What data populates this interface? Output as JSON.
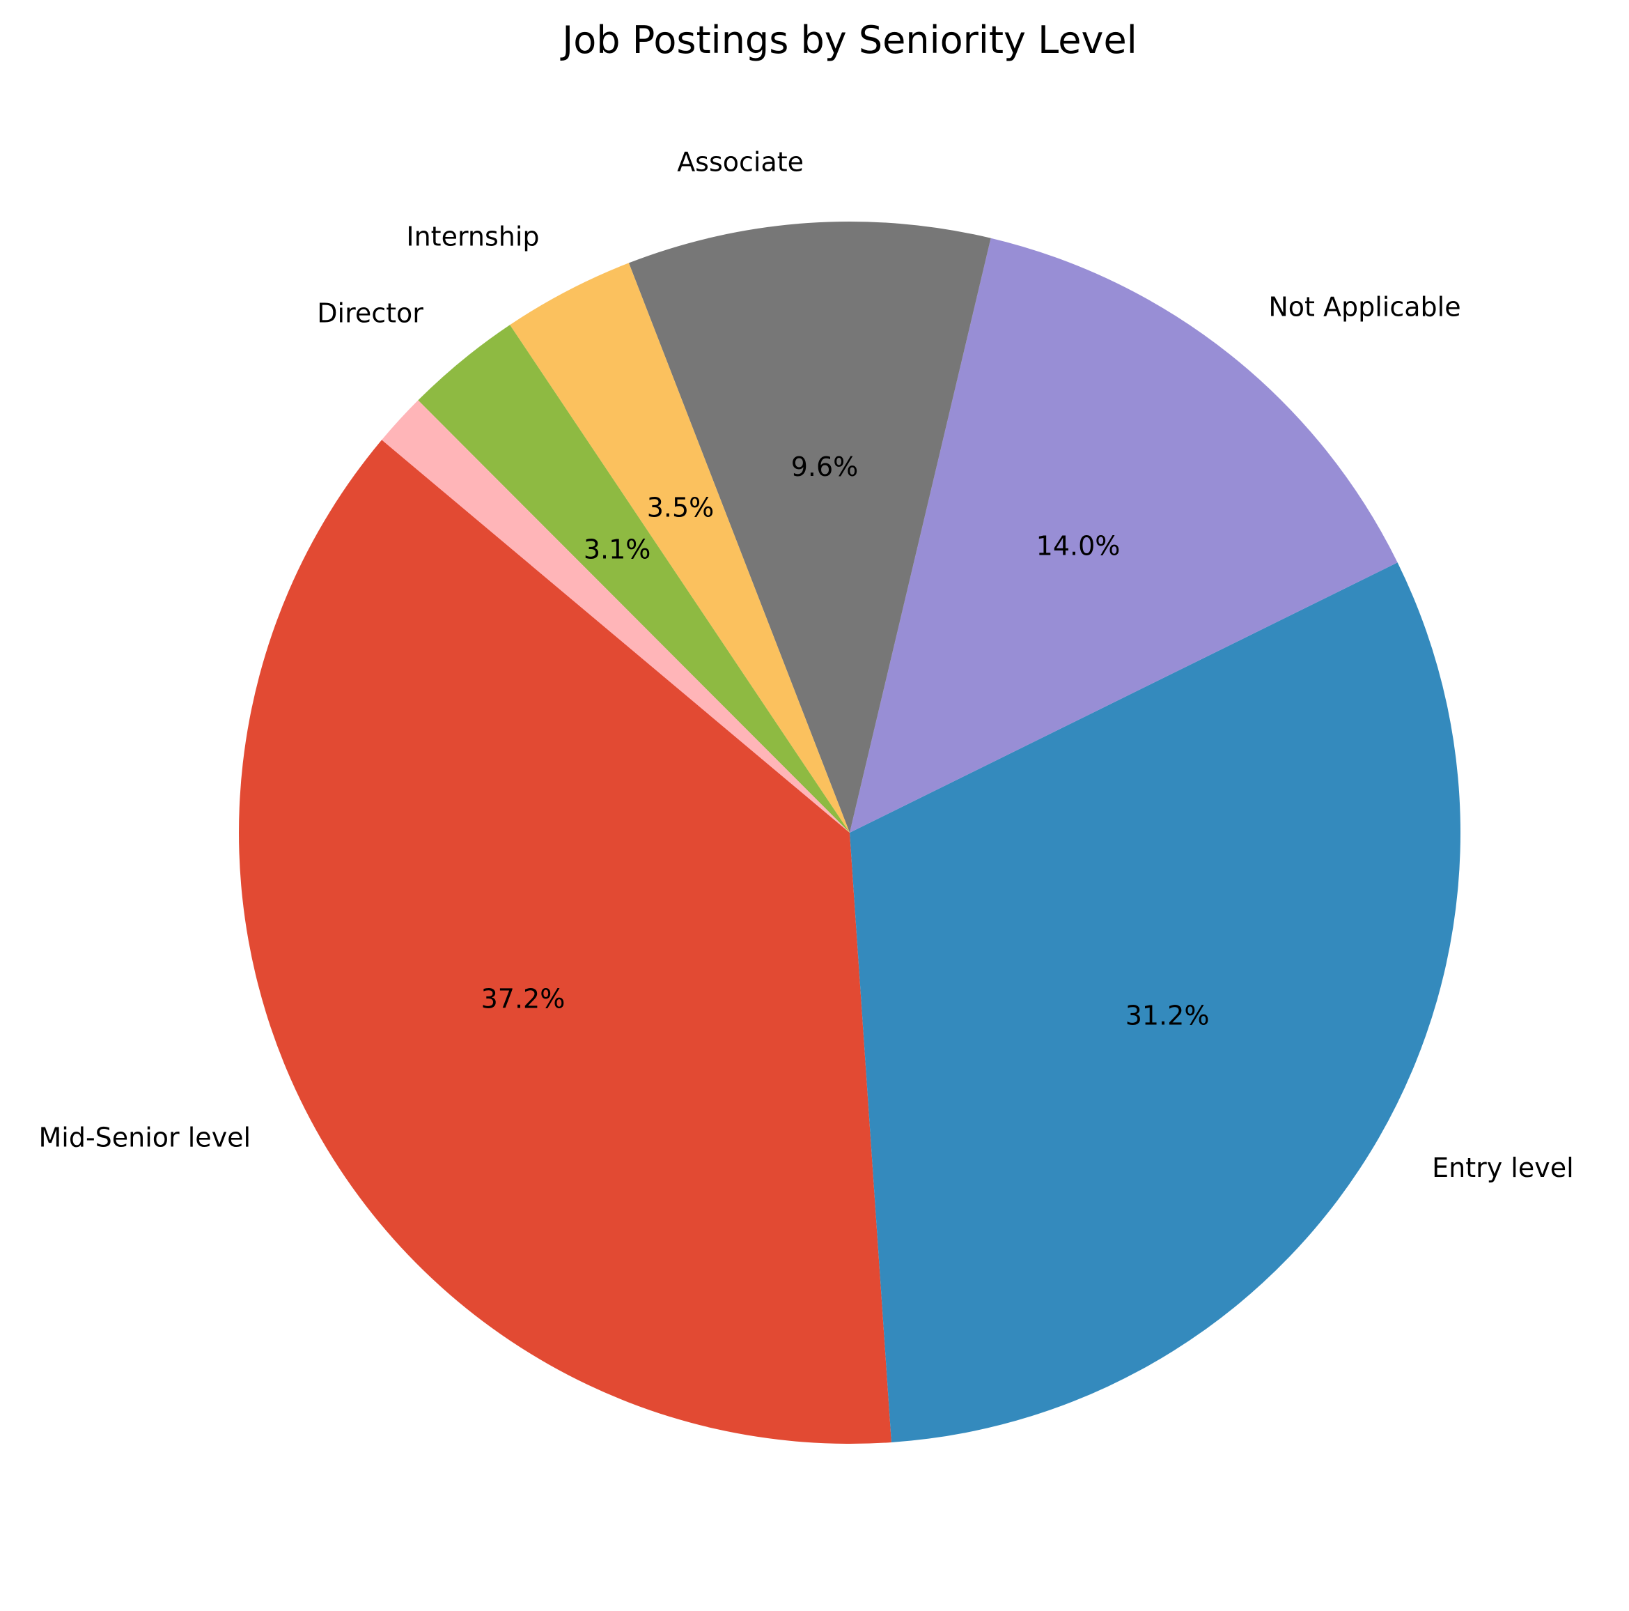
{
  "chart_data": {
    "type": "pie",
    "title": "Job Postings by Seniority Level",
    "slices": [
      {
        "label": "Mid-Senior level",
        "value": 37.2,
        "pct_label": "37.2%",
        "color": "#E24A33"
      },
      {
        "label": "Entry level",
        "value": 31.2,
        "pct_label": "31.2%",
        "color": "#348ABD"
      },
      {
        "label": "Not Applicable",
        "value": 14.0,
        "pct_label": "14.0%",
        "color": "#988ED5"
      },
      {
        "label": "Associate",
        "value": 9.6,
        "pct_label": "9.6%",
        "color": "#777777"
      },
      {
        "label": "Internship",
        "value": 3.5,
        "pct_label": "3.5%",
        "color": "#FBC15E"
      },
      {
        "label": "Director",
        "value": 3.1,
        "pct_label": "3.1%",
        "color": "#8EBA42"
      },
      {
        "label": "",
        "value": 1.4,
        "pct_label": "",
        "color": "#FFB5B8"
      }
    ],
    "start_angle_deg": 140,
    "direction": "counterclockwise",
    "legend": "none"
  }
}
